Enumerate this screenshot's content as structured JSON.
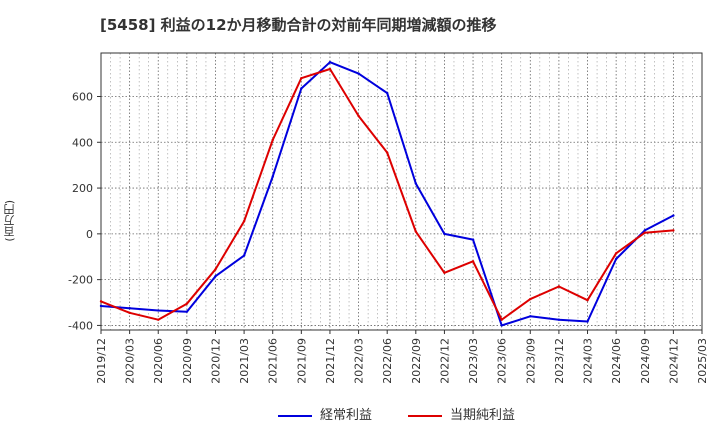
{
  "chart_data": {
    "type": "line",
    "title": "[5458]  利益の12か月移動合計の対前年同期増減額の推移",
    "ylabel": "(百万円)",
    "xlabel": "",
    "ylim": [
      -420,
      790
    ],
    "y_ticks": [
      600,
      400,
      200,
      0,
      -200,
      -400
    ],
    "categories": [
      "2019/12",
      "2020/03",
      "2020/06",
      "2020/09",
      "2020/12",
      "2021/03",
      "2021/06",
      "2021/09",
      "2021/12",
      "2022/03",
      "2022/06",
      "2022/09",
      "2022/12",
      "2023/03",
      "2023/06",
      "2023/09",
      "2023/12",
      "2024/03",
      "2024/06",
      "2024/09",
      "2024/12",
      "2025/03"
    ],
    "series": [
      {
        "name": "経常利益",
        "color": "#0000dd",
        "values": [
          -315,
          -325,
          -335,
          -340,
          -185,
          -95,
          250,
          635,
          750,
          700,
          615,
          220,
          0,
          -25,
          -400,
          -360,
          -375,
          -383,
          -110,
          15,
          80,
          null
        ]
      },
      {
        "name": "当期純利益",
        "color": "#dd0000",
        "values": [
          -295,
          -345,
          -375,
          -305,
          -155,
          55,
          410,
          680,
          720,
          515,
          355,
          10,
          -170,
          -120,
          -375,
          -285,
          -230,
          -290,
          -85,
          5,
          15,
          null
        ]
      }
    ],
    "grid": true,
    "legend_position": "bottom"
  }
}
